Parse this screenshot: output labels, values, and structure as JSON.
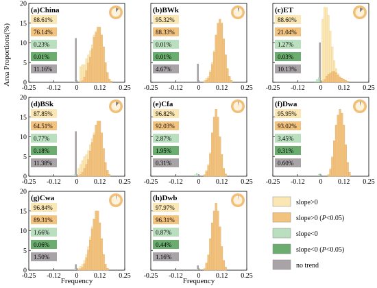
{
  "figure": {
    "ylabel": "Area Proportions(%)",
    "xlabel": "Frequency"
  },
  "colors": {
    "slope_pos": "#fbe7b4",
    "slope_pos_sig": "#f2c27f",
    "slope_neg": "#b9dfbe",
    "slope_neg_sig": "#6aad6f",
    "no_trend": "#a8a3a6",
    "ring": "#f2bf79",
    "ring_inner": "#fdf3dc",
    "ring_slice": "#888888"
  },
  "legend": [
    {
      "key": "slope_pos",
      "label": "slope>0"
    },
    {
      "key": "slope_pos_sig",
      "label_pre": "slope>0 (",
      "label_italic": "P",
      "label_post": "<0.05)"
    },
    {
      "key": "slope_neg",
      "label": "slope<0"
    },
    {
      "key": "slope_neg_sig",
      "label_pre": "slope<0 (",
      "label_italic": "P",
      "label_post": "<0.05)"
    },
    {
      "key": "no_trend",
      "label": "no trend"
    }
  ],
  "chart_data": [
    {
      "type": "bar",
      "panel": "(a)China",
      "xlim": [
        -0.25,
        0.25
      ],
      "ylim": [
        0,
        20
      ],
      "xticks": [
        "-0.25",
        "-0.12",
        "0",
        "0.12",
        "0.25"
      ],
      "yticks": [
        "0",
        "5",
        "10",
        "15",
        "20"
      ],
      "percentages": [
        "88.61%",
        "76.14%",
        "0.23%",
        "0.01%",
        "11.16%"
      ],
      "no_trend_value": 11.2,
      "pos_bins": {
        "x": [
          0.02,
          0.03,
          0.04,
          0.05,
          0.06,
          0.07,
          0.08,
          0.09,
          0.1,
          0.11,
          0.12,
          0.13,
          0.14,
          0.15,
          0.16,
          0.17,
          0.18
        ],
        "values": [
          4,
          4.5,
          4.5,
          6,
          7,
          8,
          9.5,
          12,
          13,
          14,
          14,
          12,
          9,
          5,
          2.5,
          0.8,
          0.3
        ],
        "sig_fraction": [
          0.05,
          0.1,
          0.3,
          0.5,
          0.7,
          0.8,
          0.9,
          0.95,
          0.97,
          1,
          1,
          1,
          1,
          1,
          1,
          1,
          1
        ]
      },
      "neg_bins": {
        "x": [
          -0.01
        ],
        "values": [
          0.2
        ]
      },
      "pie_share": 0.11
    },
    {
      "type": "bar",
      "panel": "(b)BWk",
      "xlim": [
        -0.25,
        0.25
      ],
      "ylim": [
        0,
        20
      ],
      "xticks": [
        "-0.25",
        "-0.12",
        "0",
        "0.12",
        "0.25"
      ],
      "yticks": [
        "0",
        "5",
        "10",
        "15",
        "20"
      ],
      "percentages": [
        "95.32%",
        "88.33%",
        "0.01%",
        "0.01%",
        "4.67%"
      ],
      "no_trend_value": 4.7,
      "pos_bins": {
        "x": [
          0.03,
          0.04,
          0.05,
          0.06,
          0.07,
          0.08,
          0.09,
          0.1,
          0.11,
          0.12,
          0.13,
          0.14,
          0.15,
          0.16,
          0.17
        ],
        "values": [
          0.5,
          1,
          1.5,
          3,
          5,
          8,
          12,
          15,
          16,
          15,
          11,
          7,
          3.5,
          1.5,
          0.5
        ],
        "sig_fraction": [
          0.3,
          0.5,
          0.7,
          0.85,
          0.9,
          0.95,
          1,
          1,
          1,
          1,
          1,
          1,
          1,
          1,
          1
        ]
      },
      "neg_bins": {
        "x": [],
        "values": []
      },
      "pie_share": 0.05
    },
    {
      "type": "bar",
      "panel": "(c)ET",
      "xlim": [
        -0.25,
        0.25
      ],
      "ylim": [
        0,
        20
      ],
      "xticks": [
        "-0.25",
        "-0.12",
        "0",
        "0.12",
        "0.25"
      ],
      "yticks": [
        "0",
        "5",
        "10",
        "15",
        "20"
      ],
      "percentages": [
        "88.60%",
        "21.04%",
        "1.27%",
        "0.03%",
        "10.13%"
      ],
      "no_trend_value": 10.1,
      "pos_bins": {
        "x": [
          0.01,
          0.02,
          0.03,
          0.04,
          0.05,
          0.06,
          0.07,
          0.08,
          0.09,
          0.1,
          0.11,
          0.12,
          0.13,
          0.14
        ],
        "values": [
          16,
          19,
          19,
          17,
          13,
          9,
          5.5,
          3.5,
          2.2,
          1.5,
          1,
          0.8,
          0.5,
          0.3
        ],
        "sig_fraction": [
          0.02,
          0.04,
          0.08,
          0.12,
          0.18,
          0.3,
          0.5,
          0.7,
          0.85,
          0.9,
          1,
          1,
          1,
          1
        ]
      },
      "neg_bins": {
        "x": [
          -0.03,
          -0.02,
          -0.01
        ],
        "values": [
          0.3,
          0.8,
          1.2
        ]
      },
      "pie_share": 0.12
    },
    {
      "type": "bar",
      "panel": "(d)BSk",
      "xlim": [
        -0.25,
        0.25
      ],
      "ylim": [
        0,
        20
      ],
      "xticks": [
        "-0.25",
        "-0.12",
        "0",
        "0.12",
        "0.25"
      ],
      "yticks": [
        "0",
        "5",
        "10",
        "15",
        "20"
      ],
      "percentages": [
        "87.85%",
        "64.51%",
        "0.77%",
        "0.18%",
        "11.38%"
      ],
      "no_trend_value": 11.4,
      "pos_bins": {
        "x": [
          0.01,
          0.02,
          0.03,
          0.04,
          0.05,
          0.06,
          0.07,
          0.08,
          0.09,
          0.1,
          0.11,
          0.12,
          0.13,
          0.14,
          0.15,
          0.16,
          0.17
        ],
        "values": [
          2,
          3,
          4,
          5,
          5.5,
          6.5,
          8,
          9.5,
          11,
          13,
          14,
          14,
          11,
          7,
          3.5,
          1.5,
          0.5
        ],
        "sig_fraction": [
          0.1,
          0.15,
          0.25,
          0.4,
          0.55,
          0.65,
          0.8,
          0.9,
          0.95,
          1,
          1,
          1,
          1,
          1,
          1,
          1,
          1
        ]
      },
      "neg_bins": {
        "x": [
          -0.02,
          -0.01
        ],
        "values": [
          0.3,
          0.5
        ]
      },
      "pie_share": 0.12
    },
    {
      "type": "bar",
      "panel": "(e)Cfa",
      "xlim": [
        -0.25,
        0.25
      ],
      "ylim": [
        0,
        20
      ],
      "xticks": [
        "-0.25",
        "-0.12",
        "0",
        "0.12",
        "0.25"
      ],
      "yticks": [
        "0",
        "5",
        "10",
        "15",
        "20"
      ],
      "percentages": [
        "96.82%",
        "92.03%",
        "2.87%",
        "1.95%",
        "0.31%"
      ],
      "no_trend_value": 0.3,
      "pos_bins": {
        "x": [
          0.03,
          0.04,
          0.05,
          0.06,
          0.07,
          0.08,
          0.09,
          0.1,
          0.11,
          0.12,
          0.13,
          0.14
        ],
        "values": [
          0.5,
          1.5,
          3,
          6,
          11,
          15,
          17,
          15,
          10,
          5.5,
          2,
          0.6
        ],
        "sig_fraction": [
          0.6,
          0.8,
          0.9,
          0.95,
          1,
          1,
          1,
          1,
          1,
          1,
          1,
          1
        ]
      },
      "neg_bins": {
        "x": [
          -0.02,
          -0.01
        ],
        "values": [
          0.4,
          0.8
        ]
      },
      "pie_share": 0.03
    },
    {
      "type": "bar",
      "panel": "(f)Dwa",
      "xlim": [
        -0.25,
        0.25
      ],
      "ylim": [
        0,
        20
      ],
      "xticks": [
        "-0.25",
        "-0.12",
        "0",
        "0.12",
        "0.25"
      ],
      "yticks": [
        "0",
        "5",
        "10",
        "15",
        "20"
      ],
      "percentages": [
        "95.95%",
        "93.02%",
        "3.45%",
        "0.31%",
        "0.60%"
      ],
      "no_trend_value": 0.6,
      "pos_bins": {
        "x": [
          0.04,
          0.05,
          0.06,
          0.07,
          0.08,
          0.09,
          0.1,
          0.11,
          0.12,
          0.13,
          0.14,
          0.15
        ],
        "values": [
          0.5,
          2,
          5,
          9,
          13,
          15.5,
          17,
          16,
          13,
          8,
          3.5,
          1
        ],
        "sig_fraction": [
          0.7,
          0.85,
          0.95,
          1,
          1,
          1,
          1,
          1,
          1,
          1,
          1,
          1
        ]
      },
      "neg_bins": {
        "x": [
          -0.01
        ],
        "values": [
          0.5
        ]
      },
      "pie_share": 0.04
    },
    {
      "type": "bar",
      "panel": "(g)Cwa",
      "xlim": [
        -0.25,
        0.25
      ],
      "ylim": [
        0,
        20
      ],
      "xticks": [
        "-0.25",
        "-0.12",
        "0",
        "0.12",
        "0.25"
      ],
      "yticks": [
        "0",
        "5",
        "10",
        "15",
        "20"
      ],
      "percentages": [
        "96.84%",
        "89.31%",
        "1.66%",
        "0.06%",
        "1.50%"
      ],
      "no_trend_value": 1.5,
      "pos_bins": {
        "x": [
          0.01,
          0.02,
          0.03,
          0.04,
          0.05,
          0.06,
          0.07,
          0.08,
          0.09,
          0.1,
          0.11,
          0.12,
          0.13,
          0.14,
          0.15,
          0.16
        ],
        "values": [
          0.5,
          1,
          1.5,
          2.5,
          4,
          6,
          8.5,
          11,
          13,
          15,
          15,
          12,
          8,
          4,
          1.5,
          0.5
        ],
        "sig_fraction": [
          0.3,
          0.4,
          0.5,
          0.65,
          0.8,
          0.85,
          0.9,
          0.95,
          1,
          1,
          1,
          1,
          1,
          1,
          1,
          1
        ]
      },
      "neg_bins": {
        "x": [
          -0.01
        ],
        "values": [
          0.4
        ]
      },
      "pie_share": 0.03
    },
    {
      "type": "bar",
      "panel": "(h)Dwb",
      "xlim": [
        -0.25,
        0.25
      ],
      "ylim": [
        0,
        20
      ],
      "xticks": [
        "-0.25",
        "-0.12",
        "0",
        "0.12",
        "0.25"
      ],
      "yticks": [
        "0",
        "5",
        "10",
        "15",
        "20"
      ],
      "percentages": [
        "97.97%",
        "96.31%",
        "0.87%",
        "0.44%",
        "1.16%"
      ],
      "no_trend_value": 1.2,
      "pos_bins": {
        "x": [
          0.03,
          0.04,
          0.05,
          0.06,
          0.07,
          0.08,
          0.09,
          0.1,
          0.11,
          0.12,
          0.13,
          0.14
        ],
        "values": [
          0.5,
          2,
          4,
          8,
          12,
          15,
          17,
          15,
          11,
          6,
          2.5,
          0.8
        ],
        "sig_fraction": [
          0.7,
          0.85,
          0.95,
          1,
          1,
          1,
          1,
          1,
          1,
          1,
          1,
          1
        ]
      },
      "neg_bins": {
        "x": [
          -0.01
        ],
        "values": [
          0.3
        ]
      },
      "pie_share": 0.02
    }
  ]
}
